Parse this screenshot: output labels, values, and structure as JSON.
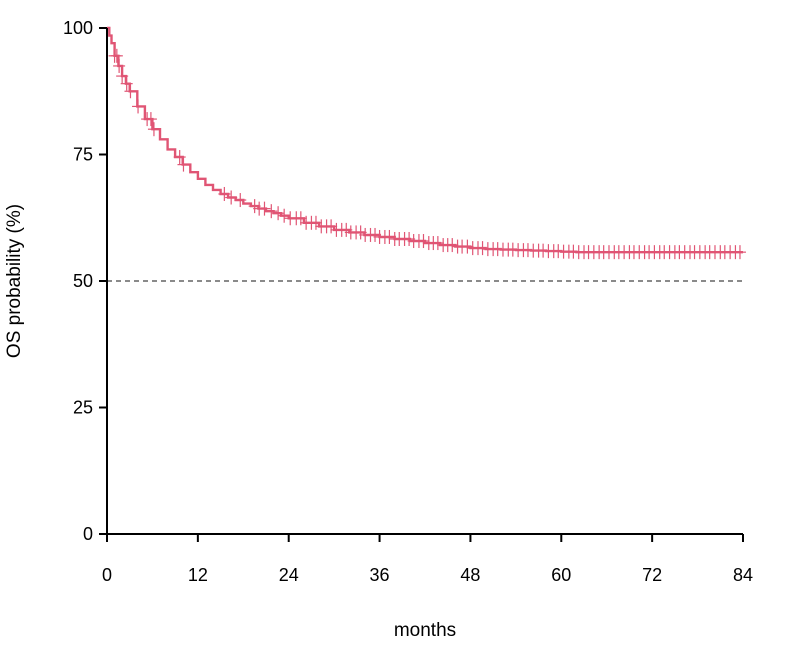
{
  "chart_data": {
    "type": "line",
    "title": "",
    "xlabel": "months",
    "ylabel": "OS probability (%)",
    "xlim": [
      0,
      84
    ],
    "ylim": [
      0,
      100
    ],
    "x_ticks": [
      0,
      12,
      24,
      36,
      48,
      60,
      72,
      84
    ],
    "y_ticks": [
      0,
      25,
      50,
      75,
      100
    ],
    "grid": false,
    "legend": "none",
    "reference_line": {
      "y": 50,
      "style": "dashed",
      "color": "#444444"
    },
    "series": [
      {
        "color": "#e05574",
        "x": [
          0,
          0.3,
          0.6,
          1,
          1.5,
          2,
          2.5,
          3,
          4,
          5,
          6,
          7,
          8,
          9,
          10,
          11,
          12,
          13,
          14,
          15,
          16,
          17,
          18,
          19,
          20,
          21,
          22,
          23,
          24,
          26,
          28,
          30,
          32,
          34,
          36,
          38,
          40,
          42,
          44,
          46,
          48,
          50,
          52,
          54,
          56,
          58,
          60,
          62,
          66,
          70,
          74,
          78,
          80,
          84
        ],
        "y": [
          100,
          98.5,
          97,
          94.5,
          92.5,
          90.5,
          89,
          87.5,
          84.5,
          82,
          80,
          78,
          76,
          74.5,
          73,
          71.5,
          70.2,
          69,
          68,
          67.2,
          66.5,
          66,
          65.3,
          64.8,
          64.3,
          63.8,
          63.4,
          62.9,
          62.4,
          61.5,
          60.8,
          60.1,
          59.6,
          59.1,
          58.7,
          58.3,
          57.9,
          57.5,
          57.1,
          56.8,
          56.5,
          56.3,
          56.2,
          56.1,
          56,
          55.9,
          55.8,
          55.7,
          55.7,
          55.7,
          55.7,
          55.7,
          55.7,
          55.7
        ],
        "censored_x": [
          1,
          1.3,
          1.6,
          2,
          2.6,
          3.1,
          4.1,
          5.3,
          5.8,
          6.2,
          9.6,
          10.1,
          15.5,
          16.4,
          17.6,
          19.5,
          20.1,
          20.8,
          21.7,
          22.6,
          23.4,
          24.2,
          25,
          25.6,
          26.3,
          27,
          27.6,
          28.3,
          29,
          29.6,
          30.3,
          31,
          31.6,
          32.2,
          32.9,
          33.5,
          34.1,
          34.8,
          35.4,
          36,
          36.7,
          37.3,
          38,
          38.6,
          39.3,
          39.9,
          40.5,
          41.2,
          41.8,
          42.5,
          43.1,
          43.7,
          44.4,
          45,
          45.6,
          46.3,
          46.9,
          47.6,
          48.3,
          49,
          49.6,
          50.3,
          51,
          51.6,
          52.3,
          53,
          53.6,
          54.3,
          55,
          55.6,
          56.3,
          57,
          57.6,
          58.3,
          59,
          59.6,
          60.3,
          61,
          61.6,
          62.3,
          63,
          63.6,
          64.3,
          65,
          65.6,
          66.3,
          67,
          67.6,
          68.3,
          69,
          69.6,
          70.3,
          71,
          71.6,
          72.3,
          73,
          73.6,
          74.3,
          75,
          75.6,
          76.3,
          77,
          77.6,
          78.3,
          79,
          79.6,
          80.3,
          81,
          81.6,
          82.3,
          83,
          83.6
        ]
      }
    ]
  }
}
